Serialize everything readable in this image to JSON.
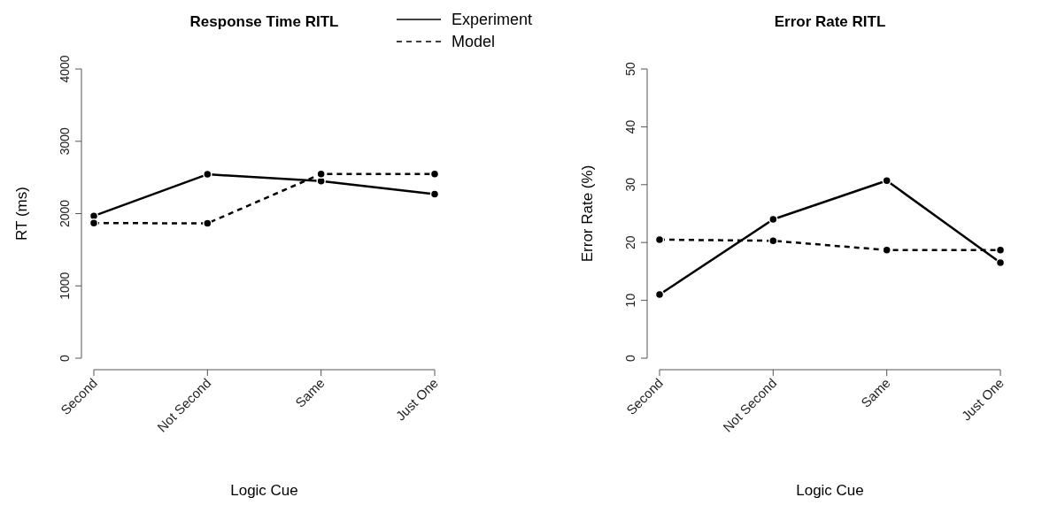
{
  "chart_data": [
    {
      "type": "line",
      "title": "Response Time RITL",
      "xlabel": "Logic Cue",
      "ylabel": "RT (ms)",
      "categories": [
        "Second",
        "Not Second",
        "Same",
        "Just One"
      ],
      "ylim": [
        0,
        4000
      ],
      "yticks": [
        0,
        1000,
        2000,
        3000,
        4000
      ],
      "marker": "circle",
      "grid": false,
      "legend": "top right",
      "series": [
        {
          "name": "Experiment",
          "color": "#000000",
          "line_style": "solid",
          "values": [
            1967,
            2543,
            2449,
            2269
          ]
        },
        {
          "name": "Model",
          "color": "#000000",
          "line_style": "dashed",
          "values": [
            1869,
            1865,
            2547,
            2547
          ]
        }
      ]
    },
    {
      "type": "line",
      "title": "Error Rate RITL",
      "xlabel": "Logic Cue",
      "ylabel": "Error Rate (%)",
      "categories": [
        "Second",
        "Not Second",
        "Same",
        "Just One"
      ],
      "ylim": [
        0,
        50
      ],
      "yticks": [
        0,
        10,
        20,
        30,
        40,
        50
      ],
      "marker": "circle",
      "grid": false,
      "series": [
        {
          "color": "#000000",
          "line_style": "solid",
          "values": [
            11.0,
            24.0,
            30.7,
            16.5
          ]
        },
        {
          "color": "#000000",
          "line_style": "dashed",
          "values": [
            20.5,
            20.3,
            18.7,
            18.7
          ]
        }
      ]
    }
  ]
}
